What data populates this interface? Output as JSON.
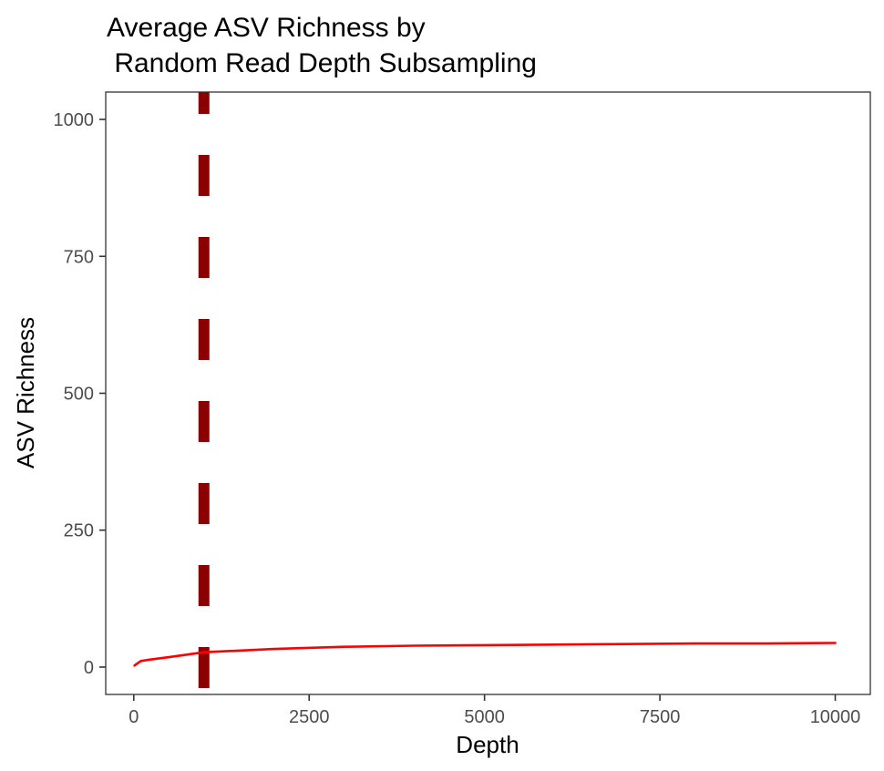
{
  "chart_data": {
    "type": "line",
    "title_lines": [
      "Average ASV Richness by",
      " Random Read Depth Subsampling"
    ],
    "xlabel": "Depth",
    "ylabel": "ASV Richness",
    "xlim": [
      -400,
      10500
    ],
    "ylim": [
      -50,
      1050
    ],
    "x_ticks": [
      0,
      2500,
      5000,
      7500,
      10000
    ],
    "x_tick_labels": [
      "0",
      "2500",
      "5000",
      "7500",
      "10000"
    ],
    "y_ticks": [
      0,
      250,
      500,
      750,
      1000
    ],
    "y_tick_labels": [
      "0",
      "250",
      "500",
      "750",
      "1000"
    ],
    "series": [
      {
        "name": "Average ASV Richness",
        "color": "#ff0000",
        "x": [
          10,
          100,
          200,
          500,
          1000,
          1500,
          2000,
          3000,
          4000,
          5000,
          6000,
          7000,
          8000,
          9000,
          10000
        ],
        "values": [
          3,
          11,
          13,
          18,
          27,
          30,
          33,
          37,
          39,
          40,
          41,
          42,
          43,
          43,
          44
        ]
      }
    ],
    "reference_line": {
      "orientation": "vertical",
      "x": 1000,
      "color": "#8b0000",
      "style": "dashed"
    }
  }
}
